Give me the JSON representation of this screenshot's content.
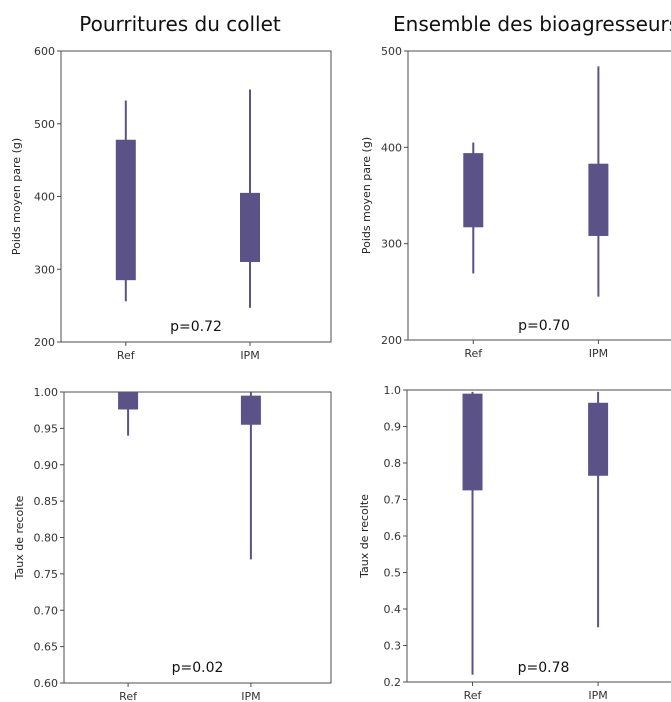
{
  "colors": {
    "box": "#5b5288",
    "whisker": "#5b5288"
  },
  "column_titles": [
    "Pourritures du collet",
    "Ensemble des bioagresseurs"
  ],
  "chart_data": [
    {
      "type": "box",
      "title": "Pourritures du collet",
      "xlabel": "",
      "ylabel": "Poids moyen pare (g)",
      "ylim": [
        200,
        600
      ],
      "yticks": [
        "200",
        "300",
        "400",
        "500",
        "600"
      ],
      "categories": [
        "Ref",
        "IPM"
      ],
      "boxes": [
        {
          "category": "Ref",
          "min": 256,
          "q1": 285,
          "q3": 478,
          "max": 532
        },
        {
          "category": "IPM",
          "min": 247,
          "q1": 310,
          "q3": 405,
          "max": 547
        }
      ],
      "annotation": "p=0.72",
      "grid": false
    },
    {
      "type": "box",
      "title": "Ensemble des bioagresseurs",
      "xlabel": "",
      "ylabel": "Poids moyen pare (g)",
      "ylim": [
        200,
        500
      ],
      "yticks": [
        "200",
        "300",
        "400",
        "500"
      ],
      "categories": [
        "Ref",
        "IPM"
      ],
      "boxes": [
        {
          "category": "Ref",
          "min": 269,
          "q1": 317,
          "q3": 394,
          "max": 405
        },
        {
          "category": "IPM",
          "min": 245,
          "q1": 308,
          "q3": 383,
          "max": 484
        }
      ],
      "annotation": "p=0.70",
      "grid": false
    },
    {
      "type": "box",
      "title": "",
      "xlabel": "",
      "ylabel": "Taux de recolte",
      "ylim": [
        0.6,
        1.0
      ],
      "yticks": [
        "0.60",
        "0.65",
        "0.70",
        "0.75",
        "0.80",
        "0.85",
        "0.90",
        "0.95",
        "1.00"
      ],
      "categories": [
        "Ref",
        "IPM"
      ],
      "boxes": [
        {
          "category": "Ref",
          "min": 0.94,
          "q1": 0.976,
          "q3": 1.0,
          "max": 1.0
        },
        {
          "category": "IPM",
          "min": 0.77,
          "q1": 0.955,
          "q3": 0.995,
          "max": 1.0
        }
      ],
      "annotation": "p=0.02",
      "grid": false
    },
    {
      "type": "box",
      "title": "",
      "xlabel": "",
      "ylabel": "Taux de recolte",
      "ylim": [
        0.2,
        1.0
      ],
      "yticks": [
        "0.2",
        "0.3",
        "0.4",
        "0.5",
        "0.6",
        "0.7",
        "0.8",
        "0.9",
        "1.0"
      ],
      "categories": [
        "Ref",
        "IPM"
      ],
      "boxes": [
        {
          "category": "Ref",
          "min": 0.22,
          "q1": 0.725,
          "q3": 0.99,
          "max": 0.995
        },
        {
          "category": "IPM",
          "min": 0.35,
          "q1": 0.765,
          "q3": 0.965,
          "max": 0.995
        }
      ],
      "annotation": "p=0.78",
      "grid": false
    }
  ]
}
